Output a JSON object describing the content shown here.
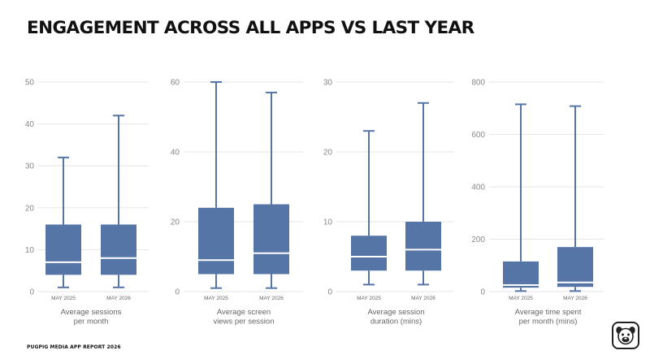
{
  "title": "ENGAGEMENT ACROSS ALL APPS VS LAST YEAR",
  "footer": "PUGPIG MEDIA APP REPORT 2026",
  "colors": {
    "box": "#5675a7",
    "median": "#ffffff",
    "grid": "#e6e6e6",
    "axis_text": "#888888"
  },
  "logo_icon": "pug-face-icon",
  "chart_data": [
    {
      "type": "box",
      "categories": [
        "MAY 2025",
        "MAY 2026"
      ],
      "ylim": [
        0,
        50
      ],
      "yticks": [
        "0",
        "10",
        "20",
        "30",
        "40",
        "50"
      ],
      "label_lines": [
        "Average sessions",
        "per month"
      ],
      "boxes": [
        {
          "min": 1,
          "q1": 4,
          "median": 7,
          "q3": 16,
          "max": 32
        },
        {
          "min": 1,
          "q1": 4,
          "median": 8,
          "q3": 16,
          "max": 42
        }
      ],
      "grid": true
    },
    {
      "type": "box",
      "categories": [
        "MAY 2025",
        "MAY 2026"
      ],
      "ylim": [
        0,
        60
      ],
      "yticks": [
        "0",
        "20",
        "40",
        "60"
      ],
      "label_lines": [
        "Average screen",
        "views per session"
      ],
      "boxes": [
        {
          "min": 1,
          "q1": 5,
          "median": 9,
          "q3": 24,
          "max": 60
        },
        {
          "min": 1,
          "q1": 5,
          "median": 11,
          "q3": 25,
          "max": 57
        }
      ],
      "grid": true
    },
    {
      "type": "box",
      "categories": [
        "MAY 2025",
        "MAY 2026"
      ],
      "ylim": [
        0,
        30
      ],
      "yticks": [
        "0",
        "10",
        "20",
        "30"
      ],
      "label_lines": [
        "Average session",
        "duration (mins)"
      ],
      "boxes": [
        {
          "min": 1,
          "q1": 3,
          "median": 5,
          "q3": 8,
          "max": 23
        },
        {
          "min": 1,
          "q1": 3,
          "median": 6,
          "q3": 10,
          "max": 27
        }
      ],
      "grid": true
    },
    {
      "type": "box",
      "categories": [
        "MAY 2025",
        "MAY 2026"
      ],
      "ylim": [
        0,
        800
      ],
      "yticks": [
        "0",
        "200",
        "400",
        "600",
        "800"
      ],
      "label_lines": [
        "Average time spent",
        "per month (mins)"
      ],
      "boxes": [
        {
          "min": 2,
          "q1": 15,
          "median": 25,
          "q3": 115,
          "max": 715
        },
        {
          "min": 2,
          "q1": 18,
          "median": 35,
          "q3": 170,
          "max": 708
        }
      ],
      "grid": true
    }
  ]
}
